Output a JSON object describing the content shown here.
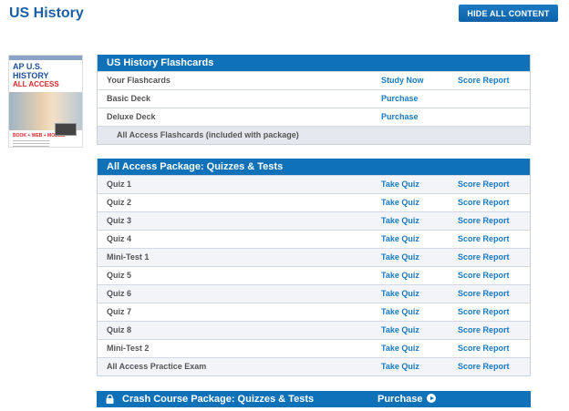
{
  "page": {
    "title": "US History",
    "hide_button": "HIDE ALL CONTENT"
  },
  "cover": {
    "line1": "AP U.S. HISTORY",
    "line2": "ALL ACCESS",
    "tagline": "BOOK + WEB + MOBILE"
  },
  "flashcards": {
    "header": "US History Flashcards",
    "rows": [
      {
        "name": "Your Flashcards",
        "action": "Study Now",
        "report": "Score Report"
      },
      {
        "name": "Basic Deck",
        "action": "Purchase",
        "report": ""
      },
      {
        "name": "Deluxe Deck",
        "action": "Purchase",
        "report": ""
      }
    ],
    "included": "All Access Flashcards (included with package)"
  },
  "quizzes": {
    "header": "All Access Package: Quizzes & Tests",
    "rows": [
      {
        "name": "Quiz 1",
        "action": "Take Quiz",
        "report": "Score Report"
      },
      {
        "name": "Quiz 2",
        "action": "Take Quiz",
        "report": "Score Report"
      },
      {
        "name": "Quiz 3",
        "action": "Take Quiz",
        "report": "Score Report"
      },
      {
        "name": "Quiz 4",
        "action": "Take Quiz",
        "report": "Score Report"
      },
      {
        "name": "Mini-Test 1",
        "action": "Take Quiz",
        "report": "Score Report"
      },
      {
        "name": "Quiz 5",
        "action": "Take Quiz",
        "report": "Score Report"
      },
      {
        "name": "Quiz 6",
        "action": "Take Quiz",
        "report": "Score Report"
      },
      {
        "name": "Quiz 7",
        "action": "Take Quiz",
        "report": "Score Report"
      },
      {
        "name": "Quiz 8",
        "action": "Take Quiz",
        "report": "Score Report"
      },
      {
        "name": "Mini-Test 2",
        "action": "Take Quiz",
        "report": "Score Report"
      },
      {
        "name": "All Access Practice Exam",
        "action": "Take Quiz",
        "report": "Score Report"
      }
    ]
  },
  "crash": {
    "header": "Crash Course Package: Quizzes & Tests",
    "purchase": "Purchase",
    "lock_icon": "lock-icon",
    "play_icon": "play-circle-icon"
  },
  "colors": {
    "accent": "#0f72b9",
    "link": "#1a7ac2",
    "title": "#1d5fa6"
  }
}
